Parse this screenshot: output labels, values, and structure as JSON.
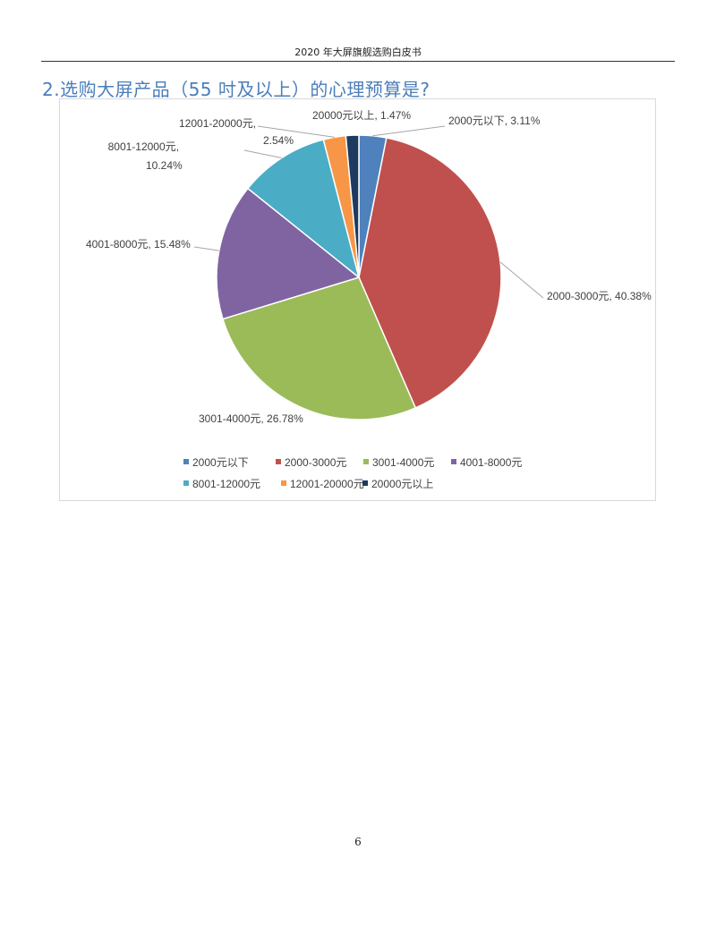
{
  "page": {
    "running_header": "2020 年大屏旗舰选购白皮书",
    "section_title": "2.选购大屏产品（55 吋及以上）的心理预算是?",
    "page_number": "6"
  },
  "chart_data": {
    "type": "pie",
    "title": "",
    "legend_position": "bottom",
    "series": [
      {
        "values": [
          3.11,
          40.38,
          26.78,
          15.48,
          10.24,
          2.54,
          1.47
        ],
        "labels": [
          "2000元以下",
          "2000-3000元",
          "3001-4000元",
          "4001-8000元",
          "8001-12000元",
          "12001-20000元",
          "20000元以上"
        ],
        "colors": [
          "#4f81bd",
          "#c0504d",
          "#9bbb59",
          "#8064a2",
          "#4bacc6",
          "#f79646",
          "#1f3a5f"
        ]
      }
    ],
    "data_labels": [
      "2000元以下, 3.11%",
      "2000-3000元, 40.38%",
      "3001-4000元, 26.78%",
      "4001-8000元, 15.48%",
      [
        "8001-12000元,",
        "10.24%"
      ],
      [
        "12001-20000元,",
        "2.54%"
      ],
      "20000元以上, 1.47%"
    ]
  }
}
